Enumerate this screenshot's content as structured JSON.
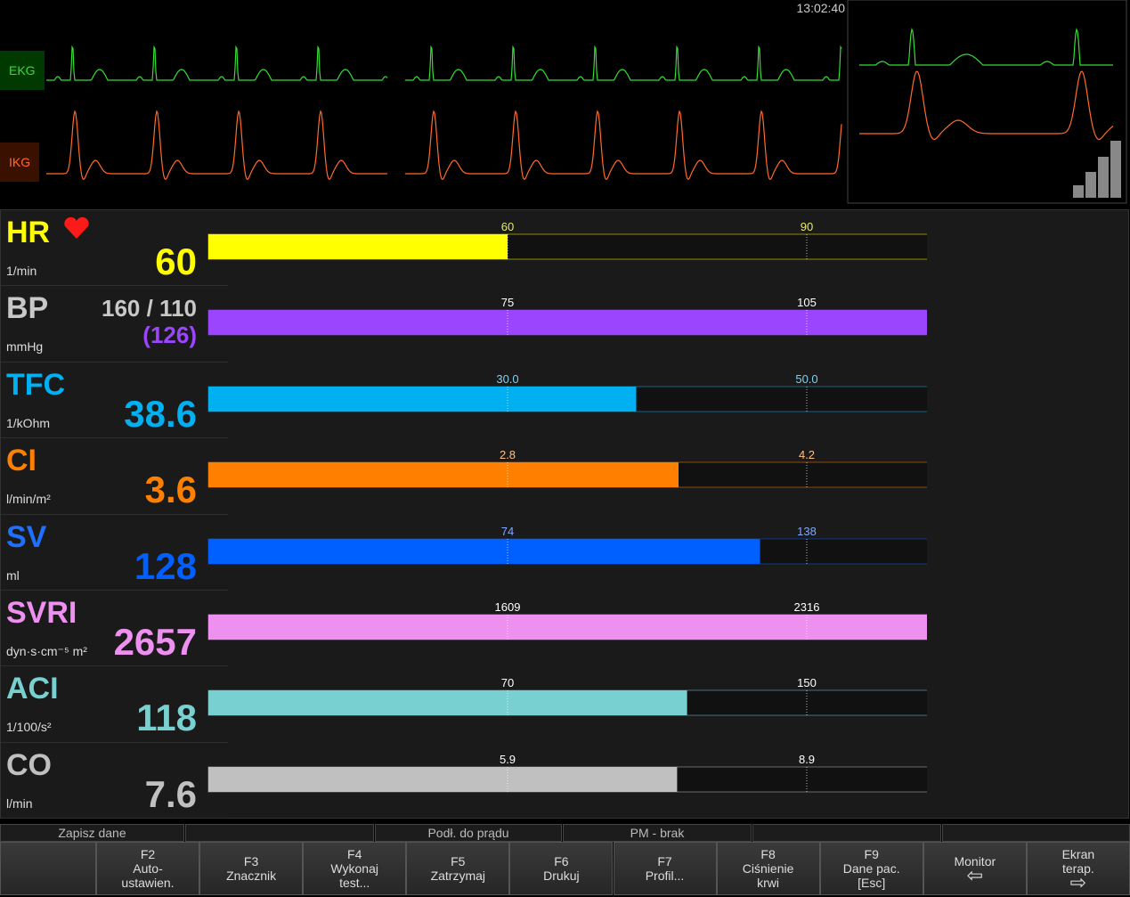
{
  "header": {
    "time": "13:02:40"
  },
  "waveforms": [
    {
      "label": "EKG",
      "color": "#33dd33"
    },
    {
      "label": "IKG",
      "color": "#ff6a2a"
    }
  ],
  "params": [
    {
      "name": "HR",
      "unit": "1/min",
      "value": 60,
      "color": "#ffff00",
      "name_color": "#ffff00",
      "ref_color": "#e8e870",
      "ref": [
        60,
        90
      ]
    },
    {
      "name": "BP",
      "unit": "mmHg",
      "pressure": "160 / 110",
      "value": {
        "value": 126,
        "label": "(126)"
      },
      "color": "#9b45ff",
      "name_color": "#c8c8c8",
      "ref_color": "#ffffff",
      "ref": [
        75,
        105
      ]
    },
    {
      "name": "TFC",
      "unit": "1/kOhm",
      "value": 38.6,
      "color": "#00b0f0",
      "name_color": "#00b0f0",
      "ref_color": "#80d0f0",
      "ref": [
        {
          "value": 30,
          "label": "30.0"
        },
        {
          "value": 50,
          "label": "50.0"
        }
      ]
    },
    {
      "name": "CI",
      "unit": "l/min/m²",
      "value": 3.6,
      "color": "#ff8000",
      "name_color": "#ff8000",
      "ref_color": "#ffc080",
      "ref": [
        2.8,
        4.2
      ]
    },
    {
      "name": "SV",
      "unit": "ml",
      "value": 128,
      "color": "#0060ff",
      "name_color": "#2070ff",
      "ref_color": "#80a8ff",
      "ref": [
        74,
        138
      ]
    },
    {
      "name": "SVRI",
      "unit": "dyn·s·cm⁻⁵ m²",
      "value": 2657,
      "color": "#ee90f0",
      "name_color": "#ee90f0",
      "ref_color": "#ffffff",
      "ref": [
        1609,
        2316
      ]
    },
    {
      "name": "ACI",
      "unit": "1/100/s²",
      "value": 118,
      "color": "#78d0d0",
      "name_color": "#78d0d0",
      "ref_color": "#ffffff",
      "ref": [
        70,
        150
      ]
    },
    {
      "name": "CO",
      "unit": "l/min",
      "value": 7.6,
      "color": "#c0c0c0",
      "name_color": "#c0c0c0",
      "ref_color": "#ffffff",
      "ref": [
        5.9,
        8.9
      ]
    }
  ],
  "status": [
    "Zapisz dane",
    "Podł. do prądu",
    "PM - brak"
  ],
  "keys": [
    {
      "key": "F2",
      "lines": [
        "Auto-",
        "ustawien."
      ]
    },
    {
      "key": "F3",
      "lines": [
        "Znacznik"
      ]
    },
    {
      "key": "F4",
      "lines": [
        "Wykonaj",
        "test..."
      ]
    },
    {
      "key": "F5",
      "lines": [
        "Zatrzymaj"
      ]
    },
    {
      "key": "F6",
      "lines": [
        "Drukuj"
      ]
    },
    {
      "key": "F7",
      "lines": [
        "Profil..."
      ]
    },
    {
      "key": "F8",
      "lines": [
        "Ciśnienie",
        "krwi"
      ]
    },
    {
      "key": "F9",
      "lines": [
        "Dane pac.",
        "[Esc]"
      ]
    },
    {
      "key": "Monitor",
      "lines": [
        "⇦"
      ]
    },
    {
      "key": "Ekran",
      "lines": [
        "terap.",
        "⇨"
      ]
    }
  ]
}
